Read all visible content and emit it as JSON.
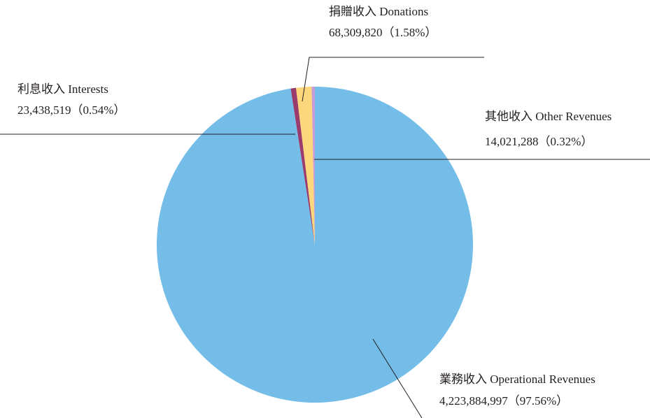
{
  "chart_data": {
    "type": "pie",
    "categories": [
      "業務收入 Operational Revenues",
      "利息收入 Interests",
      "捐贈收入 Donations",
      "其他收入 Other Revenues"
    ],
    "values": [
      4223884997,
      23438519,
      68309820,
      14021288
    ],
    "value_labels": [
      "4,223,884,997",
      "23,438,519",
      "68,309,820",
      "14,021,288"
    ],
    "percents": [
      97.56,
      0.54,
      1.58,
      0.32
    ],
    "percent_labels": [
      "（97.56%）",
      "（0.54%）",
      "（1.58%）",
      "（0.32%）"
    ],
    "colors": [
      "#74bde8",
      "#9b3a6c",
      "#fdd77c",
      "#c89bd8"
    ]
  }
}
